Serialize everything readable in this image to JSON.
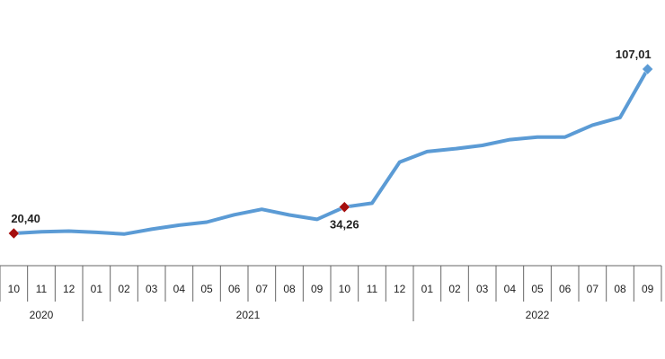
{
  "chart_data": {
    "type": "line",
    "x": [
      "10",
      "11",
      "12",
      "01",
      "02",
      "03",
      "04",
      "05",
      "06",
      "07",
      "08",
      "09",
      "10",
      "11",
      "12",
      "01",
      "02",
      "03",
      "04",
      "05",
      "06",
      "07",
      "08",
      "09"
    ],
    "years": [
      {
        "label": "2020",
        "start": 0,
        "end": 2
      },
      {
        "label": "2021",
        "start": 3,
        "end": 14
      },
      {
        "label": "2022",
        "start": 15,
        "end": 23
      }
    ],
    "series": [
      {
        "color": "#5b9bd5",
        "values": [
          20.4,
          21.2,
          21.6,
          20.9,
          20.0,
          22.6,
          24.7,
          26.3,
          30.2,
          33.1,
          30.1,
          27.8,
          34.26,
          36.3,
          58.0,
          63.5,
          65.0,
          66.8,
          69.8,
          71.2,
          71.2,
          77.5,
          81.5,
          107.01
        ]
      }
    ],
    "highlights": [
      {
        "index": 0,
        "label": "20,40",
        "color": "#a50e0e",
        "label_pos": "above"
      },
      {
        "index": 12,
        "label": "34,26",
        "color": "#a50e0e",
        "label_pos": "below"
      },
      {
        "index": 23,
        "label": "107,01",
        "color": "#5b9bd5",
        "label_pos": "above"
      }
    ],
    "grid": false,
    "legend": "none",
    "title": "",
    "xlabel": "",
    "ylabel": ""
  }
}
